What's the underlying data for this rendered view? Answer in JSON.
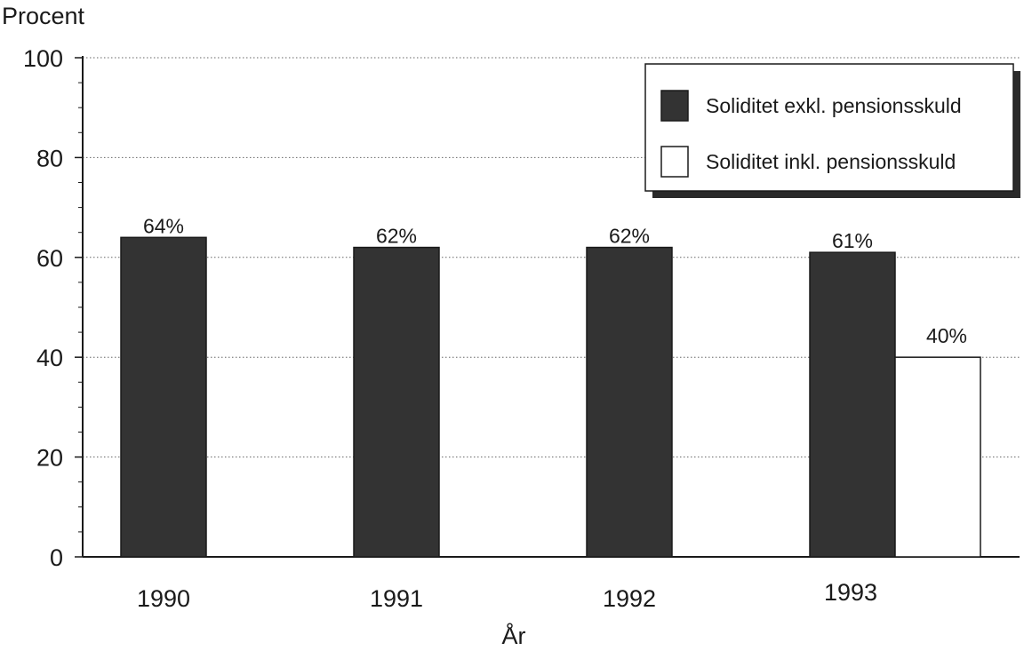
{
  "chart_data": {
    "type": "bar",
    "ylabel": "Procent",
    "xlabel": "År",
    "ylim": [
      0,
      100
    ],
    "yticks": [
      0,
      20,
      40,
      60,
      80,
      100
    ],
    "grid": true,
    "legend_position": "top-right",
    "categories": [
      "1990",
      "1991",
      "1992",
      "1993"
    ],
    "series": [
      {
        "name": "Soliditet exkl. pensionsskuld",
        "color": "#333333",
        "values": [
          64,
          62,
          62,
          61
        ],
        "labels": [
          "64%",
          "62%",
          "62%",
          "61%"
        ]
      },
      {
        "name": "Soliditet inkl. pensionsskuld",
        "color": "#ffffff",
        "values": [
          null,
          null,
          null,
          40
        ],
        "labels": [
          null,
          null,
          null,
          "40%"
        ]
      }
    ]
  }
}
